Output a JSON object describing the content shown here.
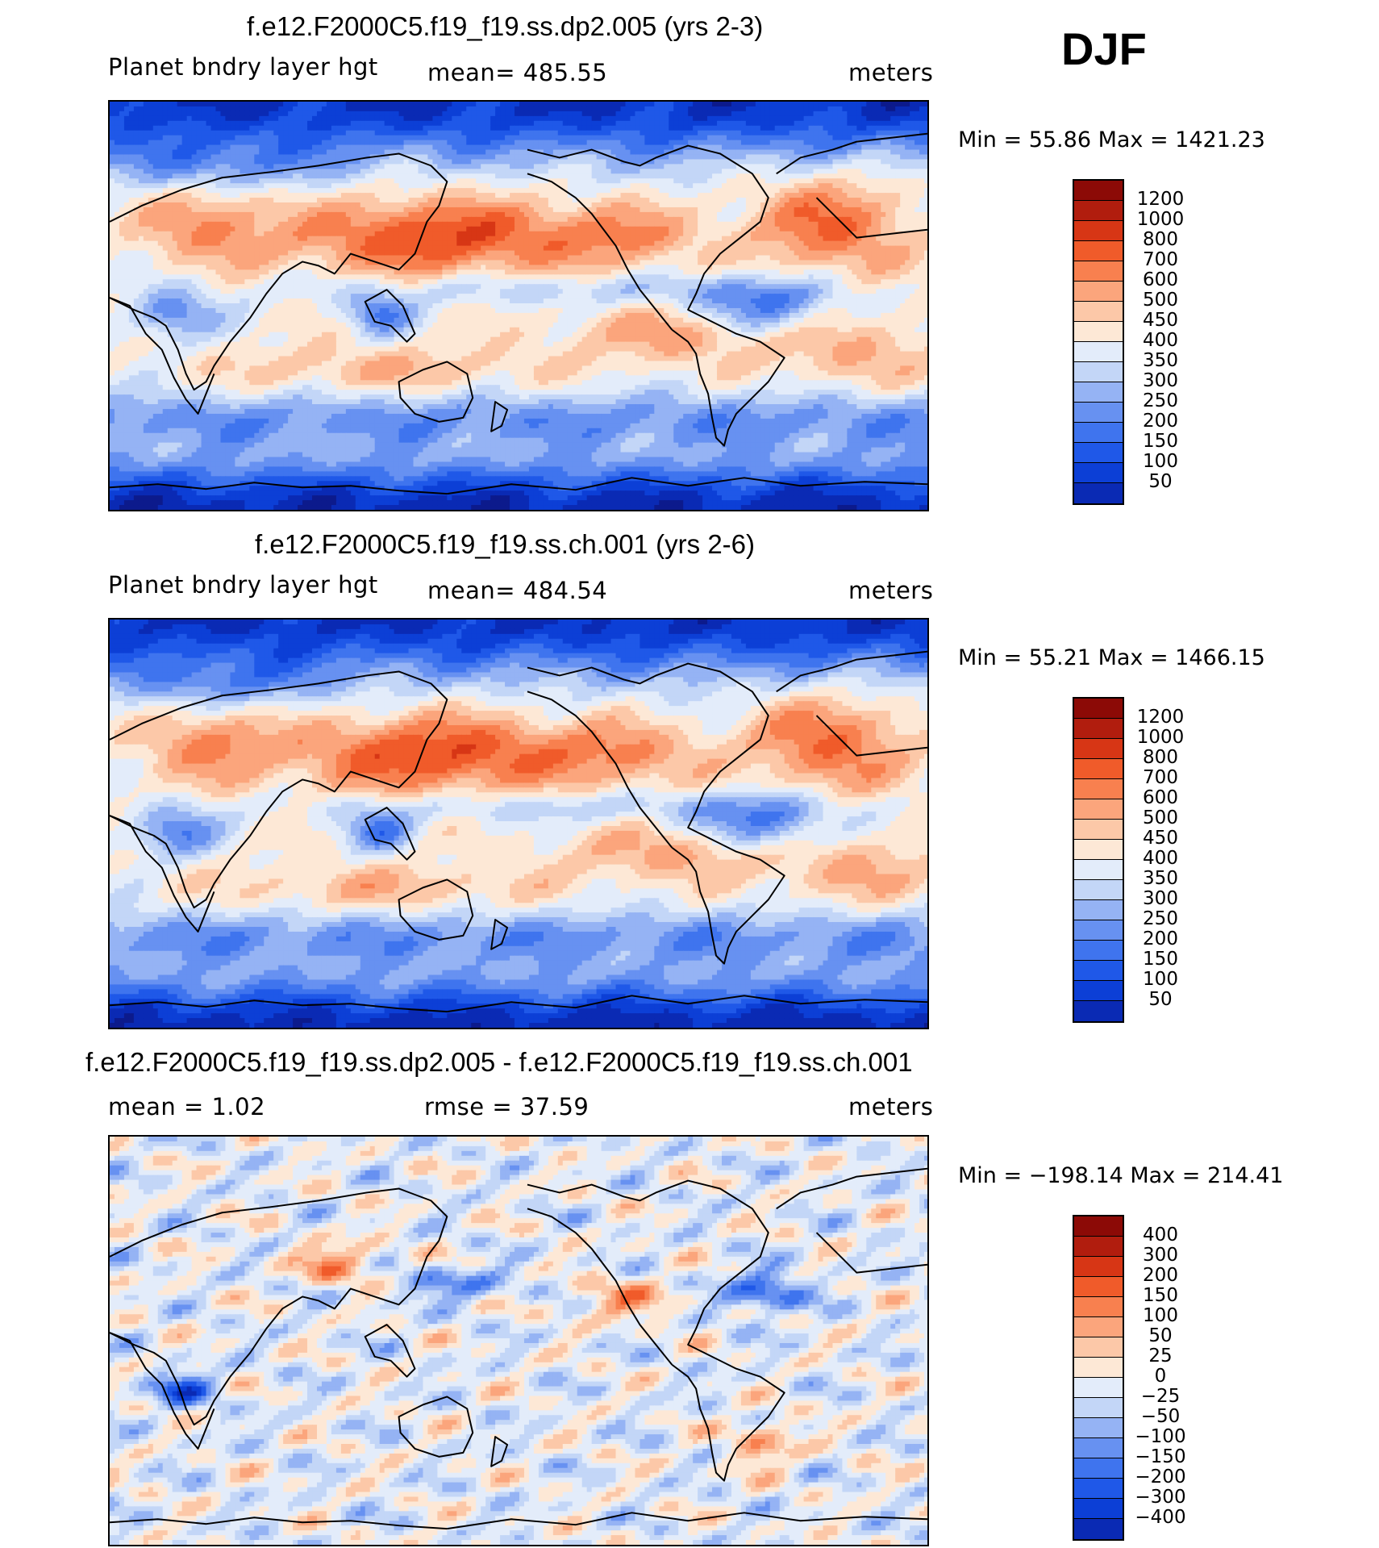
{
  "season": "DJF",
  "panels": [
    {
      "title": "f.e12.F2000C5.f19_f19.ss.dp2.005 (yrs 2-3)",
      "variable": "Planet bndry layer hgt",
      "stat": "mean=  485.55",
      "units": "meters",
      "minmax": "Min =    55.86  Max  =  1421.23",
      "colorbar_labels": [
        "1200",
        "1000",
        "800",
        "700",
        "600",
        "500",
        "450",
        "400",
        "350",
        "300",
        "250",
        "200",
        "150",
        "100",
        "50"
      ],
      "field": "model"
    },
    {
      "title": "f.e12.F2000C5.f19_f19.ss.ch.001 (yrs 2-6)",
      "variable": "Planet bndry layer hgt",
      "stat": "mean=  484.54",
      "units": "meters",
      "minmax": "Min =    55.21  Max  =  1466.15",
      "colorbar_labels": [
        "1200",
        "1000",
        "800",
        "700",
        "600",
        "500",
        "450",
        "400",
        "350",
        "300",
        "250",
        "200",
        "150",
        "100",
        "50"
      ],
      "field": "model"
    },
    {
      "title": "f.e12.F2000C5.f19_f19.ss.dp2.005 - f.e12.F2000C5.f19_f19.ss.ch.001",
      "variable": "mean =     1.02",
      "stat": "rmse =    37.59",
      "units": "meters",
      "minmax": "Min = −198.14  Max  =  214.41",
      "colorbar_labels": [
        "400",
        "300",
        "200",
        "150",
        "100",
        "50",
        "25",
        "0",
        "−25",
        "−50",
        "−100",
        "−150",
        "−200",
        "−300",
        "−400"
      ],
      "field": "difference"
    }
  ],
  "colors": {
    "palette_16": [
      "#0c1a8c",
      "#0a2ab4",
      "#0c3fd6",
      "#1f58e8",
      "#3f74ee",
      "#6791f1",
      "#95b3f4",
      "#c3d6f7",
      "#e3ecfa",
      "#fde8d6",
      "#fcc8a8",
      "#fba57c",
      "#f8804f",
      "#f05b2a",
      "#d73615",
      "#b11d0e",
      "#8c0a06"
    ],
    "coast": "#000000"
  }
}
